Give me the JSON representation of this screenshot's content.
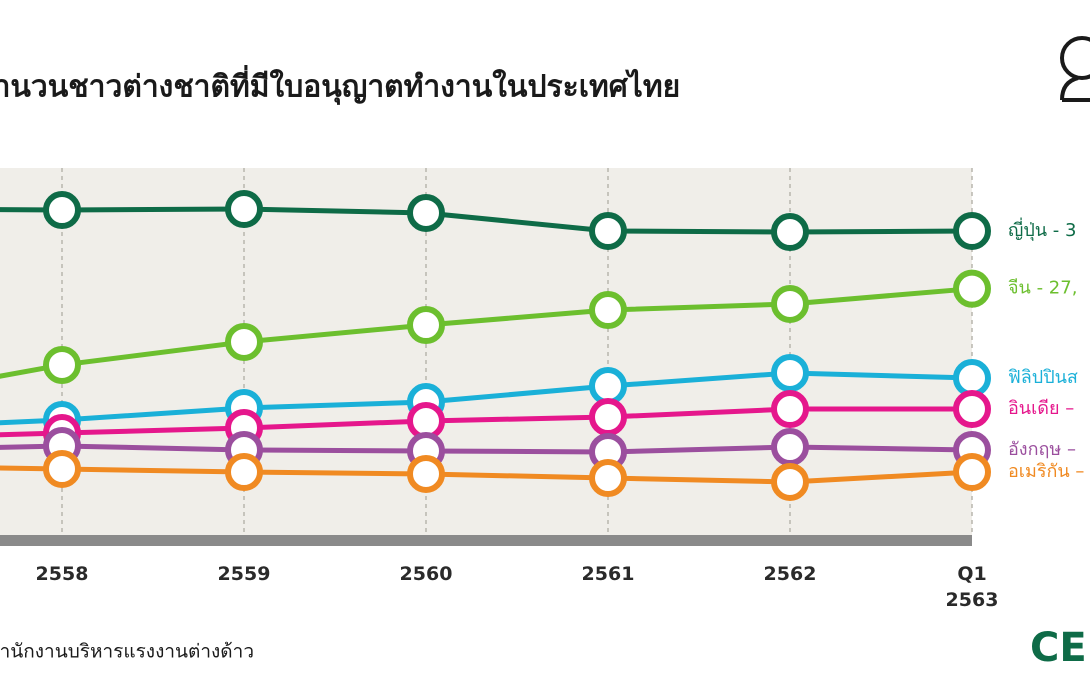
{
  "title": "จำนวนชาวต่างชาติที่มีใบอนุญาตทำงานในประเทศไทย",
  "source": "สำนักงานบริหารแรงงานต่างด้าว",
  "logo": "CE",
  "chart_data": {
    "type": "line",
    "categories": [
      null,
      "2558",
      "2559",
      "2560",
      "2561",
      "2562",
      "Q1 2563"
    ],
    "ylim": [
      0,
      40000
    ],
    "series": [
      {
        "name": "ญี่ปุ่น - 3",
        "color": "#0e6b47",
        "values": [
          35760,
          35650,
          35760,
          35330,
          33370,
          33260,
          33370
        ]
      },
      {
        "name": "จีน - 27,",
        "color": "#6cbf2e",
        "values": [
          15220,
          18810,
          21310,
          23150,
          24780,
          25440,
          27100
        ]
      },
      {
        "name": "ฟิลิปปินส",
        "color": "#1ab0d8",
        "values": [
          11960,
          12830,
          14130,
          14780,
          16520,
          17940,
          17390
        ]
      },
      {
        "name": "อินเดีย –",
        "color": "#e5178c",
        "values": [
          10870,
          11410,
          11960,
          12720,
          13150,
          14020,
          14020
        ]
      },
      {
        "name": "อังกฤษ –",
        "color": "#9b4f9e",
        "values": [
          9570,
          10000,
          9570,
          9460,
          9350,
          9890,
          9570
        ]
      },
      {
        "name": "อเมริกัน –",
        "color": "#f08a22",
        "values": [
          7830,
          7500,
          7170,
          6960,
          6520,
          6090,
          7170
        ]
      }
    ]
  }
}
